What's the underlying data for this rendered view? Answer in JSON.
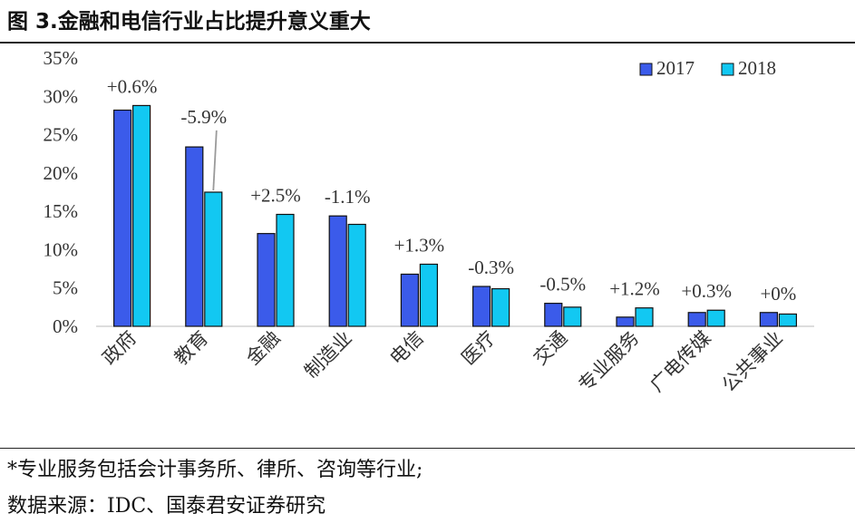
{
  "header": {
    "title": "图 3.金融和电信行业占比提升意义重大"
  },
  "footer": {
    "note": "*专业服务包括会计事务所、律所、咨询等行业;",
    "source": "数据来源：IDC、国泰君安证券研究"
  },
  "colors": {
    "series_2017": "#3b5bea",
    "series_2018": "#12c8f2",
    "axis": "#bbbbbb",
    "text": "#333333"
  },
  "chart_data": {
    "type": "bar",
    "categories": [
      "政府",
      "教育",
      "金融",
      "制造业",
      "电信",
      "医疗",
      "交通",
      "专业服务",
      "广电传媒",
      "公共事业"
    ],
    "series": [
      {
        "name": "2017",
        "values": [
          28.2,
          23.4,
          12.1,
          14.4,
          6.8,
          5.2,
          3.0,
          1.2,
          1.8,
          1.8
        ]
      },
      {
        "name": "2018",
        "values": [
          28.8,
          17.5,
          14.6,
          13.3,
          8.1,
          4.9,
          2.5,
          2.4,
          2.1,
          1.6
        ]
      }
    ],
    "annotations": [
      "+0.6%",
      "-5.9%",
      "+2.5%",
      "-1.1%",
      "+1.3%",
      "-0.3%",
      "-0.5%",
      "+1.2%",
      "+0.3%",
      "+0%"
    ],
    "yticks": [
      "0%",
      "5%",
      "10%",
      "15%",
      "20%",
      "25%",
      "30%",
      "35%"
    ],
    "ylim": [
      0,
      35
    ],
    "xlabel": "",
    "ylabel": "",
    "legend": "top-right",
    "grid": false
  }
}
